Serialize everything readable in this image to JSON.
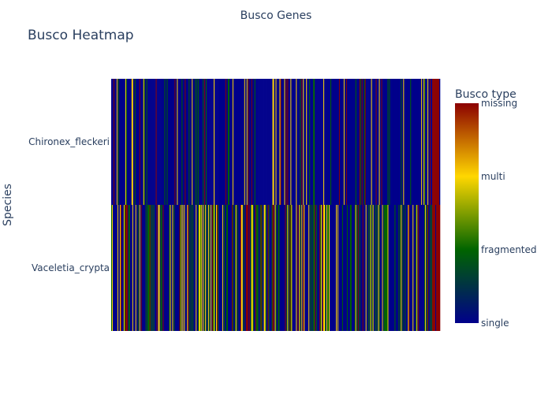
{
  "chart_data": {
    "type": "heatmap",
    "title": "Busco Heatmap",
    "xlabel": "Busco Genes",
    "ylabel": "Species",
    "species": [
      "Chironex_fleckeri",
      "Vaceletia_crypta"
    ],
    "colorbar": {
      "title": "Busco type",
      "tick_labels": [
        "single",
        "fragmented",
        "multi",
        "missing"
      ],
      "colors": [
        "#00008b",
        "#006400",
        "#ffd700",
        "#8b0000"
      ],
      "stops": [
        0.0,
        0.333,
        0.667,
        1.0
      ]
    },
    "gene_count": 420,
    "value_codes": {
      "single": 0,
      "fragmented": 1,
      "multi": 2,
      "missing": 3
    },
    "notes_missing_block": {
      "Chironex_fleckeri": "last columns mostly missing",
      "Vaceletia_crypta": "last columns mostly missing"
    }
  }
}
